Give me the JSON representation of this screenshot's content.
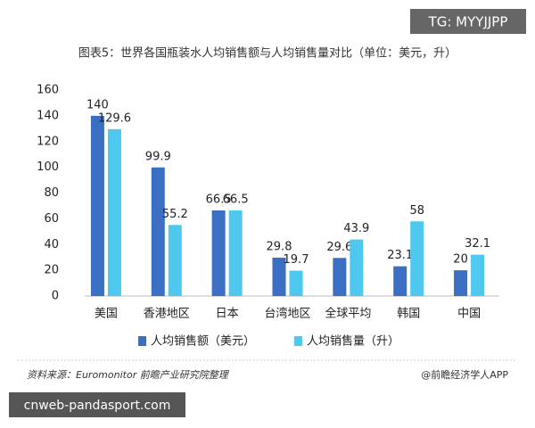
{
  "watermark": "TG: MYYJJPP",
  "chart_data": {
    "type": "bar",
    "title": "图表5：世界各国瓶装水人均销售额与人均销售量对比（单位：美元，升）",
    "categories": [
      "美国",
      "香港地区",
      "日本",
      "台湾地区",
      "全球平均",
      "韩国",
      "中国"
    ],
    "series": [
      {
        "name": "人均销售额（美元）",
        "color": "#3a6fc4",
        "values": [
          140,
          99.9,
          66.5,
          29.8,
          29.6,
          23.1,
          20
        ]
      },
      {
        "name": "人均销售量（升）",
        "color": "#4fc8f0",
        "values": [
          129.6,
          55.2,
          66.5,
          19.7,
          43.9,
          58,
          32.1
        ]
      }
    ],
    "ylim": [
      0,
      160
    ],
    "yticks": [
      0,
      20,
      40,
      60,
      80,
      100,
      120,
      140,
      160
    ],
    "grid": false
  },
  "footer": {
    "source": "资料来源：Euromonitor 前瞻产业研究院整理",
    "credit": "@前瞻经济学人APP"
  },
  "site": "cnweb-pandasport.com"
}
